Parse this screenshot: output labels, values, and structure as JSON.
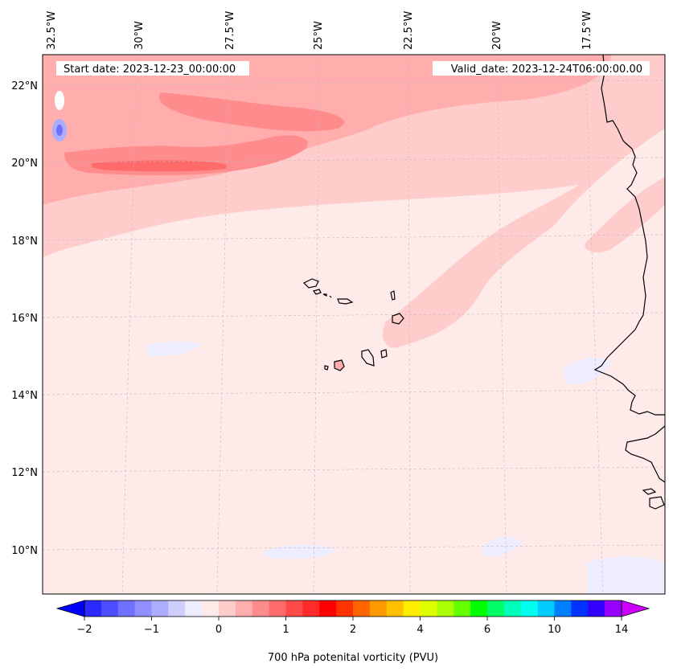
{
  "map": {
    "lon_labels": [
      "32.5°W",
      "30°W",
      "27.5°W",
      "25°W",
      "22.5°W",
      "20°W",
      "17.5°W"
    ],
    "lat_labels": [
      "22°N",
      "20°N",
      "18°N",
      "16°N",
      "14°N",
      "12°N",
      "10°N"
    ],
    "start_date": "Start date: 2023-12-23_00:00:00",
    "valid_date": "Valid_date: 2023-12-24T06:00:00.00"
  },
  "colorbar": {
    "label": "700 hPa potenital vorticity (PVU)",
    "ticks": [
      "−2",
      "−1",
      "0",
      "1",
      "2",
      "4",
      "6",
      "10",
      "14"
    ],
    "colors": [
      "#0000ff",
      "#2a2aff",
      "#4d4dff",
      "#7070ff",
      "#8f8fff",
      "#adadff",
      "#cfcfff",
      "#ededff",
      "#ffeaea",
      "#ffcccc",
      "#ffadad",
      "#ff8c8c",
      "#ff6b6b",
      "#ff4a4a",
      "#ff2a2a",
      "#ff0000",
      "#ff3300",
      "#ff6600",
      "#ff9900",
      "#ffc000",
      "#ffee00",
      "#ddff00",
      "#aaff00",
      "#66ff00",
      "#00ff00",
      "#00ff66",
      "#00ffbb",
      "#00ffee",
      "#00ccff",
      "#0080ff",
      "#0033ff",
      "#3300ff",
      "#9900ff",
      "#cc00ff"
    ]
  }
}
